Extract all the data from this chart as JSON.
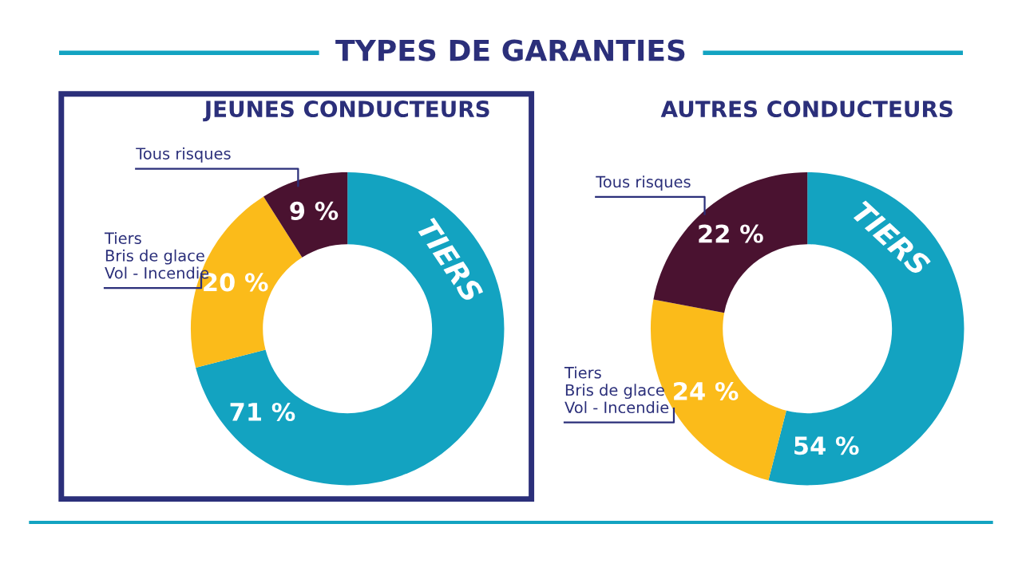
{
  "chart_data": [
    {
      "type": "donut",
      "title": "JEUNES CONDUCTEURS",
      "annotations": [
        "TYPES DE GARANTIES"
      ],
      "categories": [
        "TIERS",
        "Tiers\nBris de glace\nVol - Incendie",
        "Tous risques"
      ],
      "values": [
        71,
        20,
        9
      ],
      "colors": [
        "#13a3c1",
        "#fbbb1a",
        "#4a1230"
      ],
      "value_labels": [
        "71 %",
        "20 %",
        "9 %"
      ],
      "legend": false
    },
    {
      "type": "donut",
      "title": "AUTRES CONDUCTEURS",
      "categories": [
        "TIERS",
        "Tiers\nBris de glace\nVol - Incendie",
        "Tous risques"
      ],
      "values": [
        54,
        24,
        22
      ],
      "colors": [
        "#13a3c1",
        "#fbbb1a",
        "#4a1230"
      ],
      "value_labels": [
        "54 %",
        "24 %",
        "22 %"
      ],
      "legend": false
    }
  ]
}
